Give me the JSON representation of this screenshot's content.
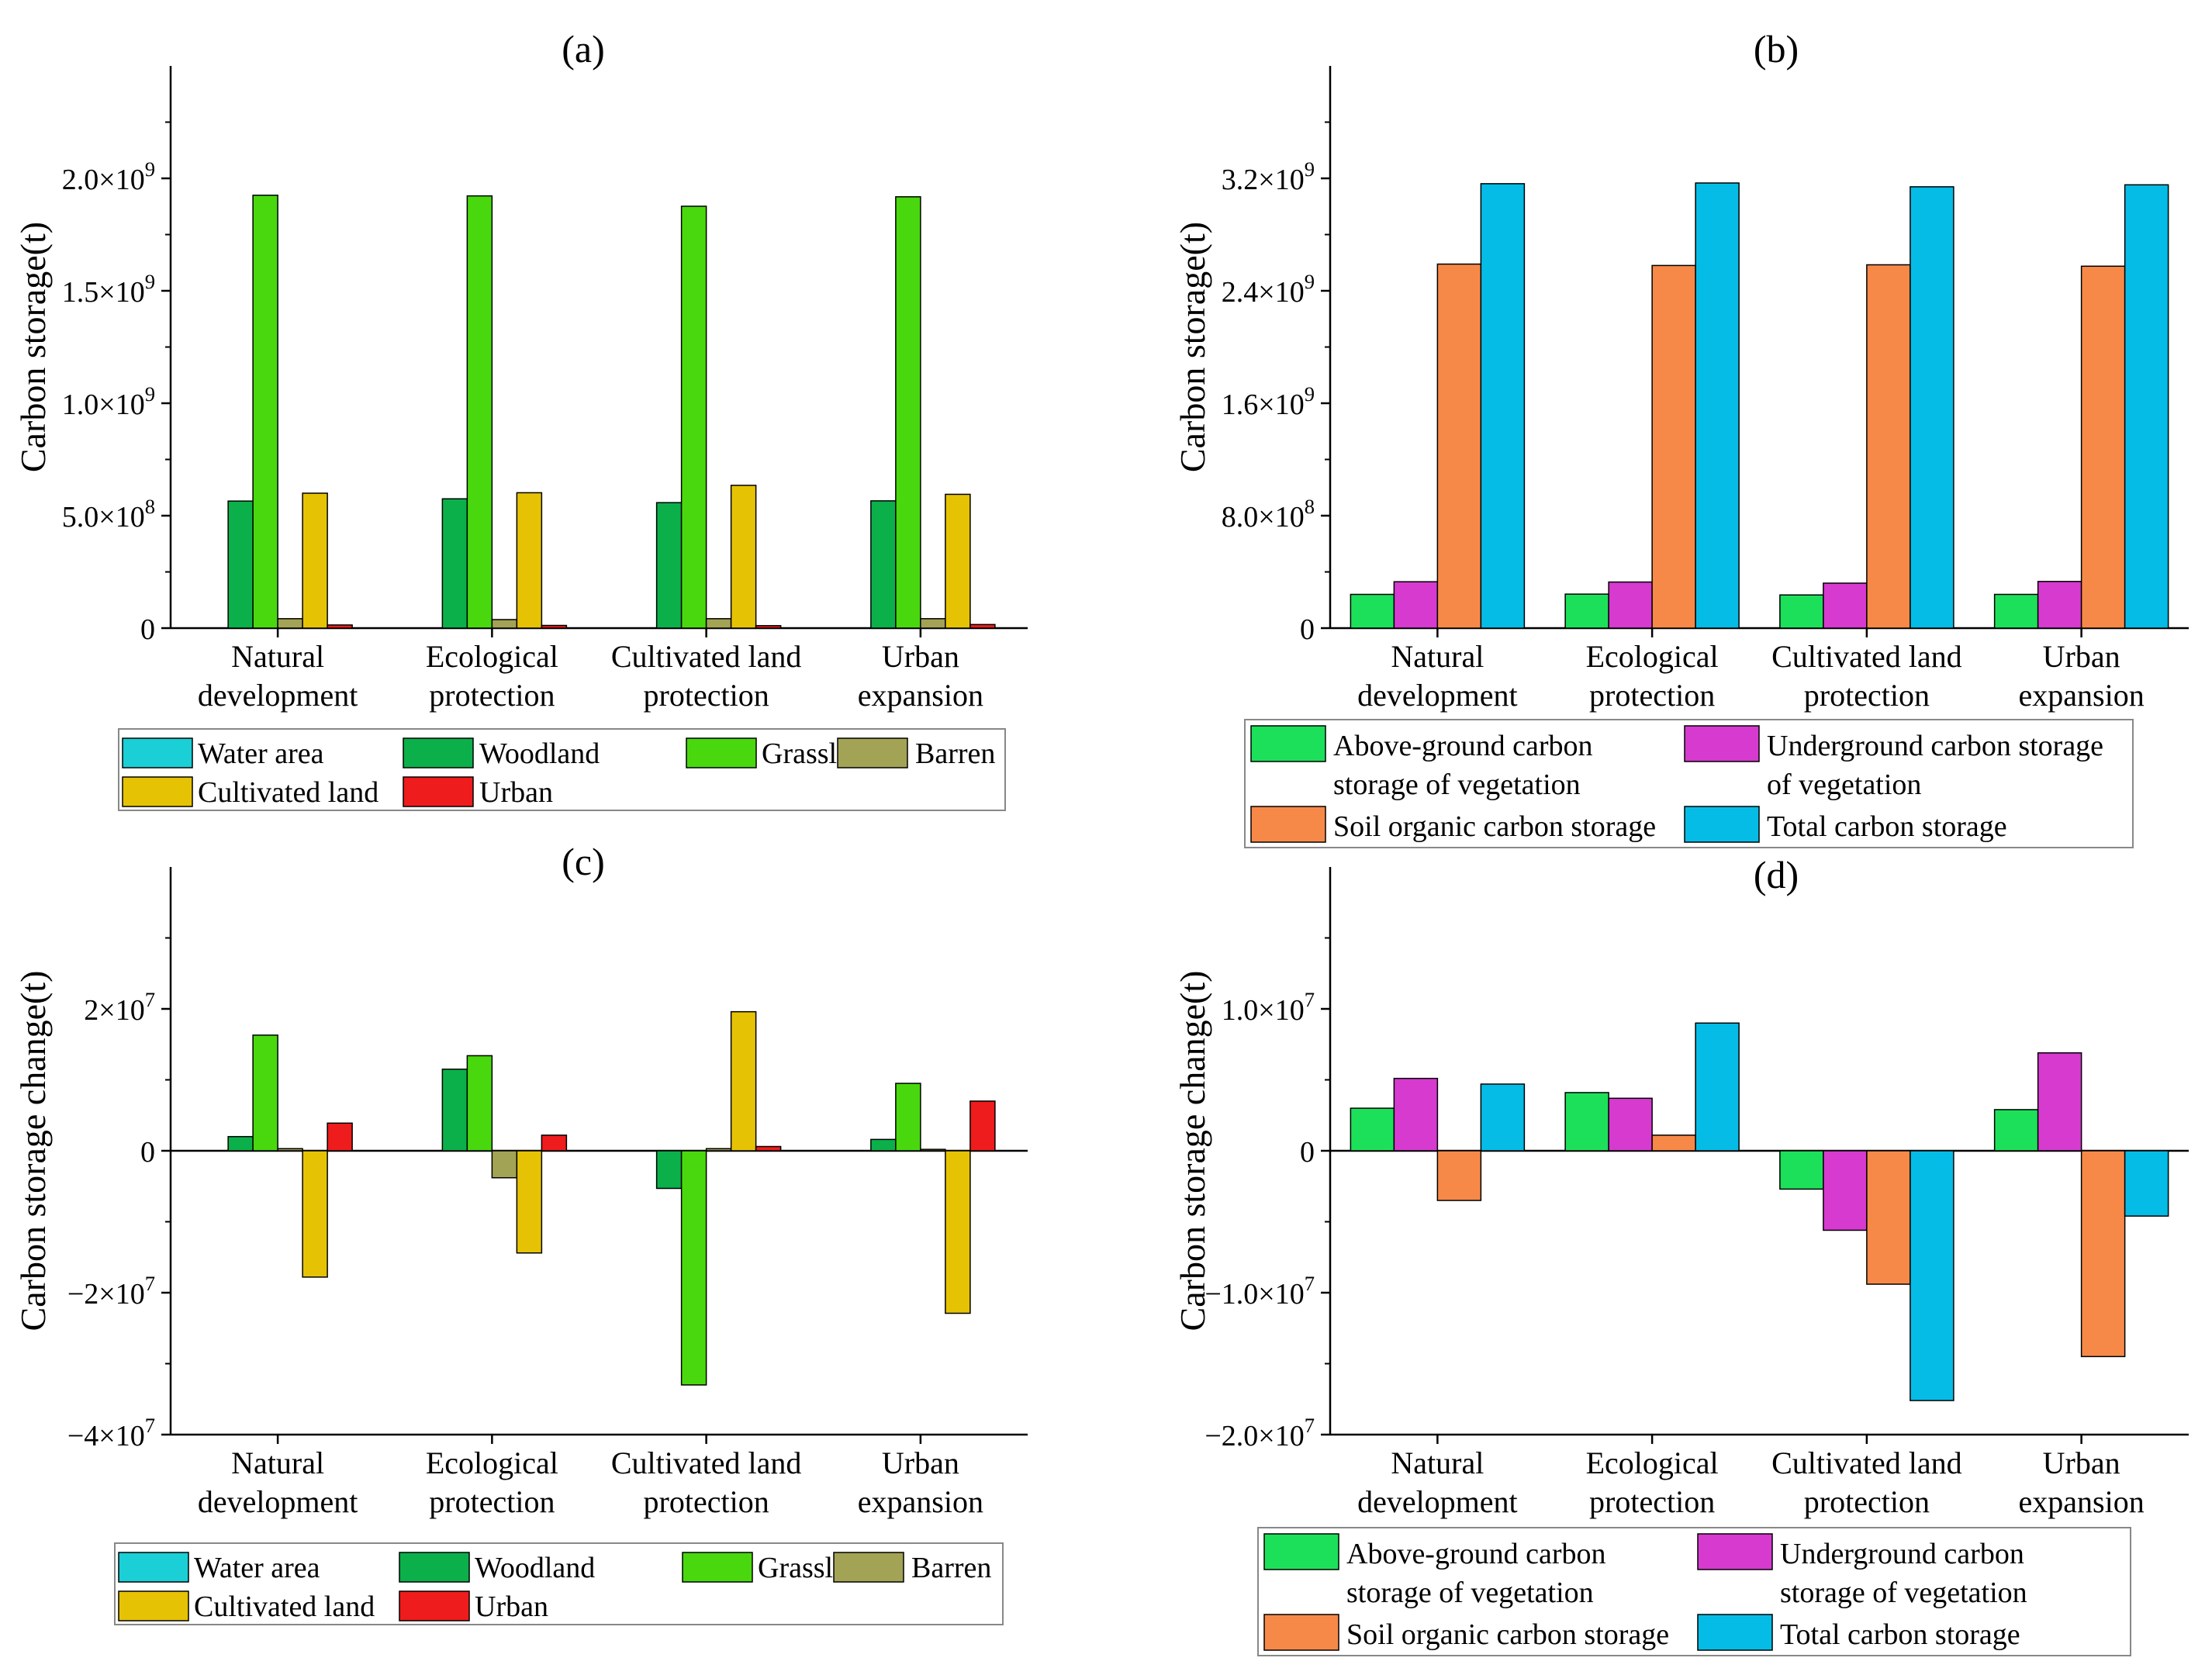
{
  "colors": {
    "water": "#1ACFD6",
    "woodland": "#0BB04A",
    "grassland": "#49D80E",
    "barren": "#A3A356",
    "cultivated": "#E6C205",
    "urban": "#EE1C1C",
    "above": "#1DE05A",
    "under": "#D63ACF",
    "soil": "#F78948",
    "total": "#05BCE6"
  },
  "chart_data": [
    {
      "id": "a",
      "type": "bar",
      "title": "(a)",
      "ylabel": "Carbon storage(t)",
      "xlabel": "",
      "ylim": [
        0,
        2500000000
      ],
      "yticks": [
        0,
        500000000,
        1000000000,
        1500000000,
        2000000000
      ],
      "ytick_labels": [
        "0",
        "5.0×10^8",
        "1.0×10^9",
        "1.5×10^9",
        "2.0×10^9"
      ],
      "categories": [
        [
          "Natural",
          "development"
        ],
        [
          "Ecological",
          "protection"
        ],
        [
          "Cultivated land",
          "protection"
        ],
        [
          "Urban",
          "expansion"
        ]
      ],
      "series": [
        {
          "name": "Water area",
          "color_key": "water",
          "values": [
            0,
            0,
            0,
            0
          ]
        },
        {
          "name": "Woodland",
          "color_key": "woodland",
          "values": [
            565000000,
            575000000,
            558000000,
            566000000
          ]
        },
        {
          "name": "Grassland",
          "color_key": "grassland",
          "values": [
            1925000000,
            1922000000,
            1876000000,
            1918000000
          ]
        },
        {
          "name": "Barren",
          "color_key": "barren",
          "values": [
            42000000,
            38000000,
            42000000,
            42000000
          ]
        },
        {
          "name": "Cultivated land",
          "color_key": "cultivated",
          "values": [
            600000000,
            602000000,
            635000000,
            595000000
          ]
        },
        {
          "name": "Urban",
          "color_key": "urban",
          "values": [
            14000000,
            12000000,
            11000000,
            16000000
          ]
        }
      ],
      "legend": "bottom"
    },
    {
      "id": "b",
      "type": "bar",
      "title": "(b)",
      "ylabel": "Carbon storage(t)",
      "xlabel": "",
      "ylim": [
        0,
        4000000000
      ],
      "yticks": [
        0,
        800000000,
        1600000000,
        2400000000,
        3200000000
      ],
      "ytick_labels": [
        "0",
        "8.0×10^8",
        "1.6×10^9",
        "2.4×10^9",
        "3.2×10^9"
      ],
      "categories": [
        [
          "Natural",
          "development"
        ],
        [
          "Ecological",
          "protection"
        ],
        [
          "Cultivated land",
          "protection"
        ],
        [
          "Urban",
          "expansion"
        ]
      ],
      "series": [
        {
          "name": [
            "Above-ground carbon",
            "storage of vegetation"
          ],
          "color_key": "above",
          "values": [
            240000000,
            242000000,
            236000000,
            240000000
          ]
        },
        {
          "name": [
            "Underground carbon storage",
            "of vegetation"
          ],
          "color_key": "under",
          "values": [
            330000000,
            328000000,
            320000000,
            332000000
          ]
        },
        {
          "name": [
            "Soil organic carbon storage"
          ],
          "color_key": "soil",
          "values": [
            2590000000,
            2580000000,
            2585000000,
            2575000000
          ]
        },
        {
          "name": [
            "Total carbon storage"
          ],
          "color_key": "total",
          "values": [
            3162000000,
            3167000000,
            3140000000,
            3154000000
          ]
        }
      ],
      "legend": "bottom"
    },
    {
      "id": "c",
      "type": "bar",
      "title": "(c)",
      "ylabel": "Carbon storage change(t)",
      "xlabel": "",
      "ylim": [
        -40000000,
        40000000
      ],
      "yticks": [
        -40000000,
        -20000000,
        0,
        20000000
      ],
      "ytick_labels": [
        "−4×10^7",
        "−2×10^7",
        "0",
        "2×10^7"
      ],
      "categories": [
        [
          "Natural",
          "development"
        ],
        [
          "Ecological",
          "protection"
        ],
        [
          "Cultivated land",
          "protection"
        ],
        [
          "Urban",
          "expansion"
        ]
      ],
      "series": [
        {
          "name": "Water area",
          "color_key": "water",
          "values": [
            0,
            0,
            0,
            0
          ]
        },
        {
          "name": "Woodland",
          "color_key": "woodland",
          "values": [
            2000000,
            11500000,
            -5300000,
            1600000
          ]
        },
        {
          "name": "Grassland",
          "color_key": "grassland",
          "values": [
            16300000,
            13400000,
            -33000000,
            9500000
          ]
        },
        {
          "name": "Barren",
          "color_key": "barren",
          "values": [
            300000,
            -3800000,
            300000,
            200000
          ]
        },
        {
          "name": "Cultivated land",
          "color_key": "cultivated",
          "values": [
            -17800000,
            -14400000,
            19600000,
            -22900000
          ]
        },
        {
          "name": "Urban",
          "color_key": "urban",
          "values": [
            3900000,
            2200000,
            600000,
            7000000
          ]
        }
      ],
      "legend": "bottom"
    },
    {
      "id": "d",
      "type": "bar",
      "title": "(d)",
      "ylabel": "Carbon storage change(t)",
      "xlabel": "",
      "ylim": [
        -20000000,
        20000000
      ],
      "yticks": [
        -20000000,
        -10000000,
        0,
        10000000
      ],
      "ytick_labels": [
        "−2.0×10^7",
        "−1.0×10^7",
        "0",
        "1.0×10^7"
      ],
      "categories": [
        [
          "Natural",
          "development"
        ],
        [
          "Ecological",
          "protection"
        ],
        [
          "Cultivated land",
          "protection"
        ],
        [
          "Urban",
          "expansion"
        ]
      ],
      "series": [
        {
          "name": [
            "Above-ground carbon",
            "storage of vegetation"
          ],
          "color_key": "above",
          "values": [
            3000000,
            4100000,
            -2700000,
            2900000
          ]
        },
        {
          "name": [
            "Underground carbon",
            "storage of vegetation"
          ],
          "color_key": "under",
          "values": [
            5100000,
            3700000,
            -5600000,
            6900000
          ]
        },
        {
          "name": [
            "Soil organic carbon storage"
          ],
          "color_key": "soil",
          "values": [
            -3500000,
            1100000,
            -9400000,
            -14500000
          ]
        },
        {
          "name": [
            "Total carbon storage"
          ],
          "color_key": "total",
          "values": [
            4700000,
            9000000,
            -17600000,
            -4600000
          ]
        }
      ],
      "legend": "bottom"
    }
  ]
}
